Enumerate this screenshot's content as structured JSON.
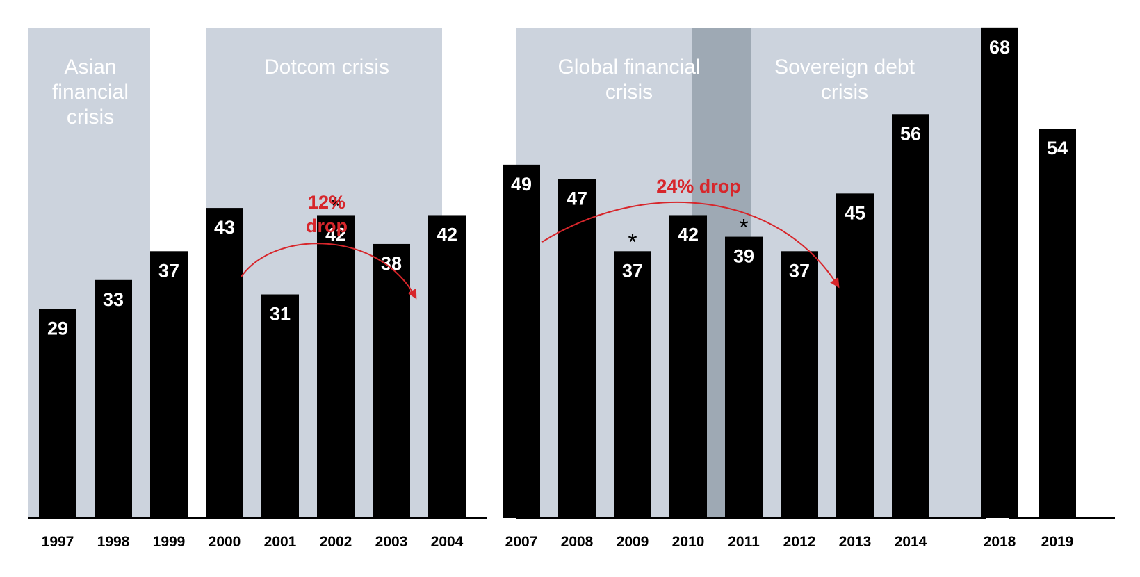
{
  "chart_data": {
    "type": "bar",
    "categories": [
      "1997",
      "1998",
      "1999",
      "2000",
      "2001",
      "2002",
      "2003",
      "2004",
      "2007",
      "2008",
      "2009",
      "2010",
      "2011",
      "2012",
      "2013",
      "2014",
      "2018",
      "2019"
    ],
    "values": [
      29,
      33,
      37,
      43,
      31,
      42,
      38,
      42,
      49,
      47,
      37,
      42,
      39,
      37,
      45,
      56,
      68,
      54
    ],
    "value_labels": [
      "29",
      "33",
      "37",
      "43",
      "31",
      "42",
      "38",
      "42",
      "49",
      "47",
      "37",
      "42",
      "39",
      "37",
      "45",
      "56",
      "68",
      "54"
    ],
    "asterisk_marks": [
      {
        "category": "2002",
        "symbol": "*"
      },
      {
        "category": "2009",
        "symbol": "*"
      },
      {
        "category": "2011",
        "symbol": "*"
      }
    ],
    "groups": [
      [
        "1997",
        "1998",
        "1999",
        "2000",
        "2001",
        "2002",
        "2003",
        "2004"
      ],
      [
        "2007",
        "2008",
        "2009",
        "2010",
        "2011",
        "2012",
        "2013",
        "2014"
      ],
      [
        "2018",
        "2019"
      ]
    ],
    "crisis_periods": [
      {
        "label_lines": [
          "Asian",
          "financial",
          "crisis"
        ],
        "from": "1997",
        "to": "1998"
      },
      {
        "label_lines": [
          "Dotcom crisis"
        ],
        "from": "2000",
        "to": "2003"
      },
      {
        "label_lines": [
          "Global financial",
          "crisis"
        ],
        "from": "2007",
        "to": "2010"
      },
      {
        "label_lines": [
          "Sovereign debt",
          "crisis"
        ],
        "from": "2010",
        "to": "2014"
      }
    ],
    "annotations": [
      {
        "label_lines": [
          "12%",
          "drop"
        ],
        "from": "2000",
        "to": "2003"
      },
      {
        "label_lines": [
          "24% drop"
        ],
        "from": "2007",
        "to": "2012"
      }
    ],
    "ylim": [
      0,
      90
    ],
    "grid": false,
    "legend": "none",
    "title": "",
    "xlabel": "",
    "ylabel": ""
  },
  "colors": {
    "bar": "#000000",
    "crisis_shade": "#ccd3dd",
    "overlap_shade": "#9ea9b4",
    "annotation": "#d7262b",
    "value_text": "#ffffff",
    "axis_text": "#000000"
  }
}
